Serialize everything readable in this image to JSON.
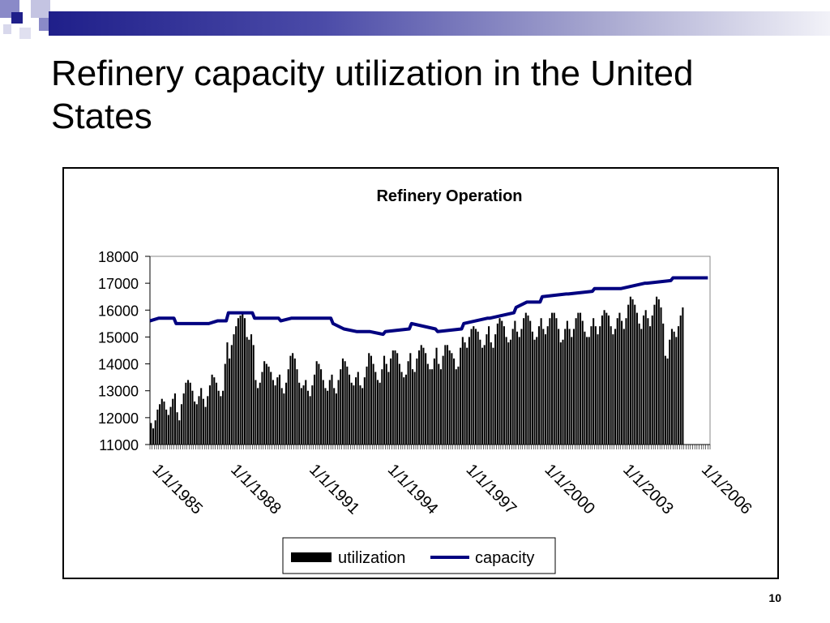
{
  "slide": {
    "title": "Refinery capacity utilization in the United States",
    "page_number": "10"
  },
  "colors": {
    "utilization": "#000000",
    "capacity": "#000080",
    "header_gradient_start": "#1f1f8a"
  },
  "chart_data": {
    "type": "bar",
    "title": "Refinery Operation",
    "xlabel": "",
    "ylabel": "",
    "ylim": [
      11000,
      18000
    ],
    "yticks": [
      11000,
      12000,
      13000,
      14000,
      15000,
      16000,
      17000,
      18000
    ],
    "x_range": [
      "1/1/1985",
      "5/1/2006"
    ],
    "xticks": [
      "1/1/1985",
      "1/1/1988",
      "1/1/1991",
      "1/1/1994",
      "1/1/1997",
      "1/1/2000",
      "1/1/2003",
      "1/1/2006"
    ],
    "legend_position": "bottom",
    "grid": false,
    "series": [
      {
        "name": "utilization",
        "type": "bar",
        "frequency": "monthly",
        "start": "1/1/1985",
        "values": [
          11800,
          11600,
          11900,
          12300,
          12500,
          12700,
          12600,
          12300,
          12100,
          12400,
          12700,
          12900,
          12200,
          11900,
          12500,
          12900,
          13300,
          13400,
          13300,
          13000,
          12600,
          12500,
          12800,
          13100,
          12700,
          12400,
          12800,
          13200,
          13600,
          13500,
          13300,
          13000,
          12800,
          13000,
          14000,
          14800,
          14200,
          14700,
          15100,
          15400,
          15700,
          15800,
          15900,
          15700,
          15000,
          14900,
          15100,
          14700,
          13400,
          13100,
          13300,
          13700,
          14100,
          14000,
          13900,
          13700,
          13400,
          13200,
          13500,
          13600,
          13100,
          12900,
          13300,
          13800,
          14300,
          14400,
          14200,
          13800,
          13300,
          13100,
          13200,
          13400,
          13000,
          12800,
          13200,
          13600,
          14100,
          14000,
          13800,
          13400,
          13100,
          13000,
          13400,
          13600,
          13100,
          12900,
          13400,
          13800,
          14200,
          14100,
          13900,
          13600,
          13300,
          13200,
          13500,
          13700,
          13200,
          13100,
          13500,
          13900,
          14400,
          14300,
          14000,
          13700,
          13400,
          13300,
          13800,
          14300,
          14000,
          13700,
          14200,
          14500,
          14500,
          14400,
          14000,
          13700,
          13500,
          13600,
          14100,
          14400,
          13800,
          13700,
          14200,
          14500,
          14700,
          14600,
          14400,
          14000,
          13800,
          13800,
          14200,
          14600,
          14000,
          13800,
          14300,
          14700,
          14700,
          14500,
          14400,
          14200,
          13800,
          13900,
          14600,
          15000,
          14800,
          14600,
          15000,
          15300,
          15400,
          15300,
          15200,
          14900,
          14600,
          14700,
          15100,
          15400,
          14800,
          14600,
          15100,
          15500,
          15700,
          15600,
          15400,
          15000,
          14800,
          14900,
          15300,
          15600,
          15200,
          15000,
          15300,
          15700,
          15900,
          15800,
          15600,
          15200,
          14900,
          15000,
          15400,
          15700,
          15300,
          15100,
          15400,
          15700,
          15900,
          15900,
          15700,
          15300,
          14800,
          14900,
          15300,
          15600,
          15300,
          15000,
          15300,
          15700,
          15900,
          15900,
          15600,
          15200,
          15000,
          15000,
          15400,
          15700,
          15400,
          15100,
          15400,
          15800,
          16000,
          15900,
          15800,
          15400,
          15100,
          15300,
          15700,
          15900,
          15600,
          15300,
          15700,
          16200,
          16500,
          16400,
          16200,
          15900,
          15500,
          15300,
          15800,
          16000,
          15700,
          15400,
          15800,
          16200,
          16500,
          16400,
          16100,
          15500,
          14300,
          14200,
          14900,
          15300,
          15200,
          15000,
          15400,
          15800,
          16100
        ]
      },
      {
        "name": "capacity",
        "type": "line",
        "points": [
          [
            "1/1/1985",
            15600
          ],
          [
            "5/1/1985",
            15700
          ],
          [
            "12/1/1985",
            15700
          ],
          [
            "1/1/1986",
            15500
          ],
          [
            "12/1/1986",
            15500
          ],
          [
            "4/1/1987",
            15500
          ],
          [
            "8/1/1987",
            15600
          ],
          [
            "12/1/1987",
            15600
          ],
          [
            "1/1/1988",
            15900
          ],
          [
            "6/1/1988",
            15900
          ],
          [
            "12/1/1988",
            15900
          ],
          [
            "1/1/1989",
            15700
          ],
          [
            "12/1/1989",
            15700
          ],
          [
            "1/1/1990",
            15600
          ],
          [
            "6/1/1990",
            15700
          ],
          [
            "12/1/1990",
            15700
          ],
          [
            "1/1/1991",
            15700
          ],
          [
            "12/1/1991",
            15700
          ],
          [
            "1/1/1992",
            15500
          ],
          [
            "6/1/1992",
            15300
          ],
          [
            "12/1/1992",
            15200
          ],
          [
            "1/1/1993",
            15200
          ],
          [
            "6/1/1993",
            15200
          ],
          [
            "12/1/1993",
            15100
          ],
          [
            "1/1/1994",
            15200
          ],
          [
            "12/1/1994",
            15300
          ],
          [
            "1/1/1995",
            15500
          ],
          [
            "12/1/1995",
            15300
          ],
          [
            "1/1/1996",
            15200
          ],
          [
            "12/1/1996",
            15300
          ],
          [
            "1/1/1997",
            15500
          ],
          [
            "12/1/1997",
            15700
          ],
          [
            "1/1/1998",
            15700
          ],
          [
            "12/1/1998",
            15900
          ],
          [
            "1/1/1999",
            16100
          ],
          [
            "6/1/1999",
            16300
          ],
          [
            "12/1/1999",
            16300
          ],
          [
            "1/1/2000",
            16500
          ],
          [
            "12/1/2000",
            16600
          ],
          [
            "1/1/2001",
            16600
          ],
          [
            "12/1/2001",
            16700
          ],
          [
            "1/1/2002",
            16800
          ],
          [
            "12/1/2002",
            16800
          ],
          [
            "1/1/2003",
            16800
          ],
          [
            "12/1/2003",
            17000
          ],
          [
            "1/1/2004",
            17000
          ],
          [
            "12/1/2004",
            17100
          ],
          [
            "1/1/2005",
            17200
          ],
          [
            "12/1/2005",
            17200
          ],
          [
            "5/1/2006",
            17200
          ]
        ]
      }
    ]
  }
}
